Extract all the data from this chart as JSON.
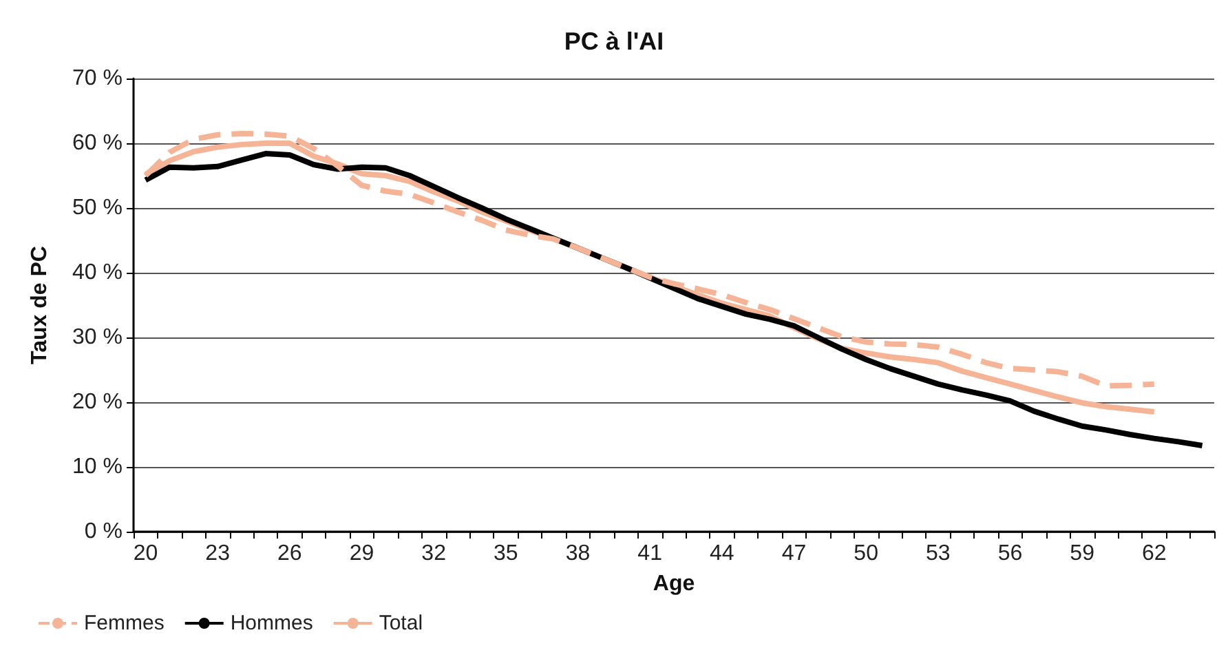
{
  "chart_data": {
    "type": "line",
    "title": "PC à l'AI",
    "xlabel": "Age",
    "ylabel": "Taux de PC",
    "categories": [
      "20",
      null,
      null,
      "23",
      null,
      null,
      "26",
      null,
      null,
      "29",
      null,
      null,
      "32",
      null,
      null,
      "35",
      null,
      null,
      "38",
      null,
      null,
      "41",
      null,
      null,
      "44",
      null,
      null,
      "47",
      null,
      null,
      "50",
      null,
      null,
      "53",
      null,
      null,
      "56",
      null,
      null,
      "59",
      null,
      null,
      "62",
      null,
      null
    ],
    "series": [
      {
        "name": "Femmes",
        "color": "#f6b496",
        "line_style": "dashed",
        "values": [
          55,
          58.6,
          60.6,
          61.3,
          61.5,
          61.4,
          61.1,
          59.2,
          56.5,
          53.5,
          52.6,
          52.1,
          50.8,
          49.4,
          48.1,
          46.6,
          45.8,
          45.2,
          43.8,
          42.3,
          40.8,
          39.3,
          38.3,
          37.5,
          36.6,
          35.4,
          34.3,
          32.9,
          31.5,
          30.1,
          29.3,
          29.0,
          28.9,
          28.5,
          27.4,
          26.1,
          25.2,
          25.0,
          24.7,
          24.0,
          22.5,
          22.6,
          22.8,
          null,
          null
        ]
      },
      {
        "name": "Hommes",
        "color": "#000000",
        "line_style": "solid",
        "values": [
          54.3,
          56.3,
          56.2,
          56.4,
          57.4,
          58.4,
          58.2,
          56.7,
          56.0,
          56.3,
          56.2,
          55.0,
          53.3,
          51.6,
          50.0,
          48.3,
          46.8,
          45.3,
          43.8,
          42.3,
          40.8,
          39.2,
          37.6,
          36.0,
          34.8,
          33.6,
          32.8,
          31.8,
          30.0,
          28.2,
          26.6,
          25.2,
          24.0,
          22.8,
          21.9,
          21.1,
          20.2,
          18.6,
          17.4,
          16.3,
          15.7,
          15.0,
          14.4,
          13.9,
          13.3
        ]
      },
      {
        "name": "Total",
        "color": "#f6b496",
        "line_style": "solid",
        "values": [
          55.2,
          57.3,
          58.7,
          59.4,
          59.8,
          60.0,
          60.0,
          58.0,
          56.8,
          55.3,
          55.0,
          54.1,
          52.5,
          51.1,
          49.4,
          48.0,
          46.6,
          45.2,
          43.8,
          42.3,
          40.8,
          39.3,
          37.9,
          36.6,
          35.3,
          34.3,
          33.3,
          31.5,
          29.8,
          28.3,
          27.6,
          27.0,
          26.6,
          26.1,
          24.8,
          23.8,
          22.8,
          21.8,
          20.8,
          19.9,
          19.3,
          18.9,
          18.5,
          null,
          null
        ]
      }
    ],
    "ylim": [
      0,
      70
    ],
    "yticks": [
      {
        "value": 0,
        "label": "0 %"
      },
      {
        "value": 10,
        "label": "10 %"
      },
      {
        "value": 20,
        "label": "20 %"
      },
      {
        "value": 30,
        "label": "30 %"
      },
      {
        "value": 40,
        "label": "40 %"
      },
      {
        "value": 50,
        "label": "50 %"
      },
      {
        "value": 60,
        "label": "60 %"
      },
      {
        "value": 70,
        "label": "70 %"
      }
    ],
    "grid": "y",
    "legend": "bottom left",
    "marker": "none"
  }
}
